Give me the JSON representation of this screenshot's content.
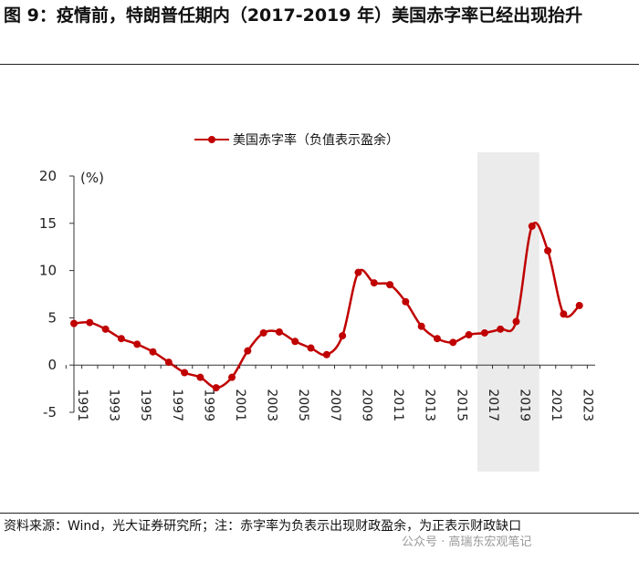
{
  "title": "图 9：疫情前，特朗普任期内（2017-2019 年）美国赤字率已经出现抬升",
  "source": "资料来源：Wind，光大证券研究所；注：赤字率为负表示出现财政盈余，为正表示财政缺口",
  "watermark": "公众号 · 高瑞东宏观笔记",
  "colors": {
    "line": "#c00000",
    "shade": "#ebebeb"
  },
  "chart_data": {
    "type": "line",
    "ylabel": "(%)",
    "ylim": [
      -5,
      20
    ],
    "yticks": [
      -5,
      0,
      5,
      10,
      15,
      20
    ],
    "xlim": [
      1991,
      2024
    ],
    "xticks": [
      1991,
      1993,
      1995,
      1997,
      1999,
      2001,
      2003,
      2005,
      2007,
      2009,
      2011,
      2013,
      2015,
      2017,
      2019,
      2021,
      2023
    ],
    "shaded_range": [
      2017,
      2020
    ],
    "grid": false,
    "legend": "top-center",
    "series": [
      {
        "name": "美国赤字率（负值表示盈余）",
        "x": [
          1991,
          1992,
          1993,
          1994,
          1995,
          1996,
          1997,
          1998,
          1999,
          2000,
          2001,
          2002,
          2003,
          2004,
          2005,
          2006,
          2007,
          2008,
          2009,
          2010,
          2011,
          2012,
          2013,
          2014,
          2015,
          2016,
          2017,
          2018,
          2019,
          2020,
          2021,
          2022,
          2023
        ],
        "values": [
          4.4,
          4.5,
          3.8,
          2.8,
          2.2,
          1.4,
          0.3,
          -0.8,
          -1.3,
          -2.4,
          -1.3,
          1.5,
          3.4,
          3.5,
          2.5,
          1.8,
          1.1,
          3.1,
          9.8,
          8.7,
          8.5,
          6.7,
          4.1,
          2.8,
          2.4,
          3.2,
          3.4,
          3.8,
          4.6,
          14.7,
          12.1,
          5.4,
          6.3
        ]
      }
    ]
  }
}
